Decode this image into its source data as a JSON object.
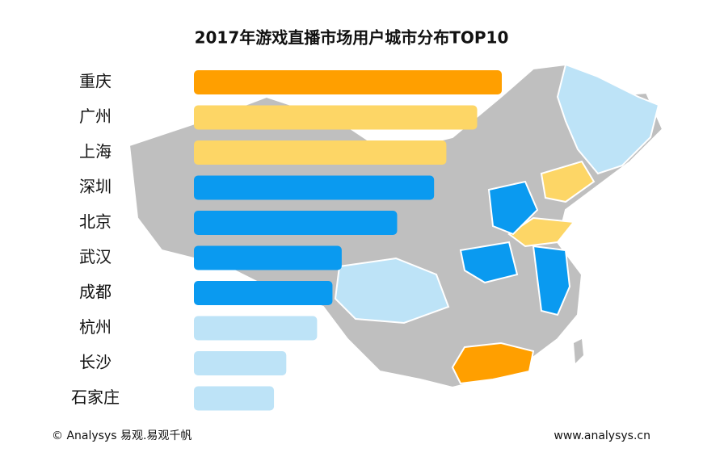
{
  "chart_data": {
    "type": "bar",
    "orientation": "horizontal",
    "title": "2017年游戏直播市场用户城市分布TOP10",
    "categories": [
      "重庆",
      "广州",
      "上海",
      "深圳",
      "北京",
      "武汉",
      "成都",
      "杭州",
      "长沙",
      "石家庄"
    ],
    "values": [
      100,
      92,
      82,
      78,
      66,
      48,
      45,
      40,
      30,
      26
    ],
    "colors": [
      "#ff9f00",
      "#fdd666",
      "#fdd666",
      "#0a9af0",
      "#0a9af0",
      "#0a9af0",
      "#0a9af0",
      "#bde3f7",
      "#bde3f7",
      "#bde3f7"
    ],
    "source": "© Analysys 易观.易观千帆",
    "website": "www.analysys.cn"
  }
}
